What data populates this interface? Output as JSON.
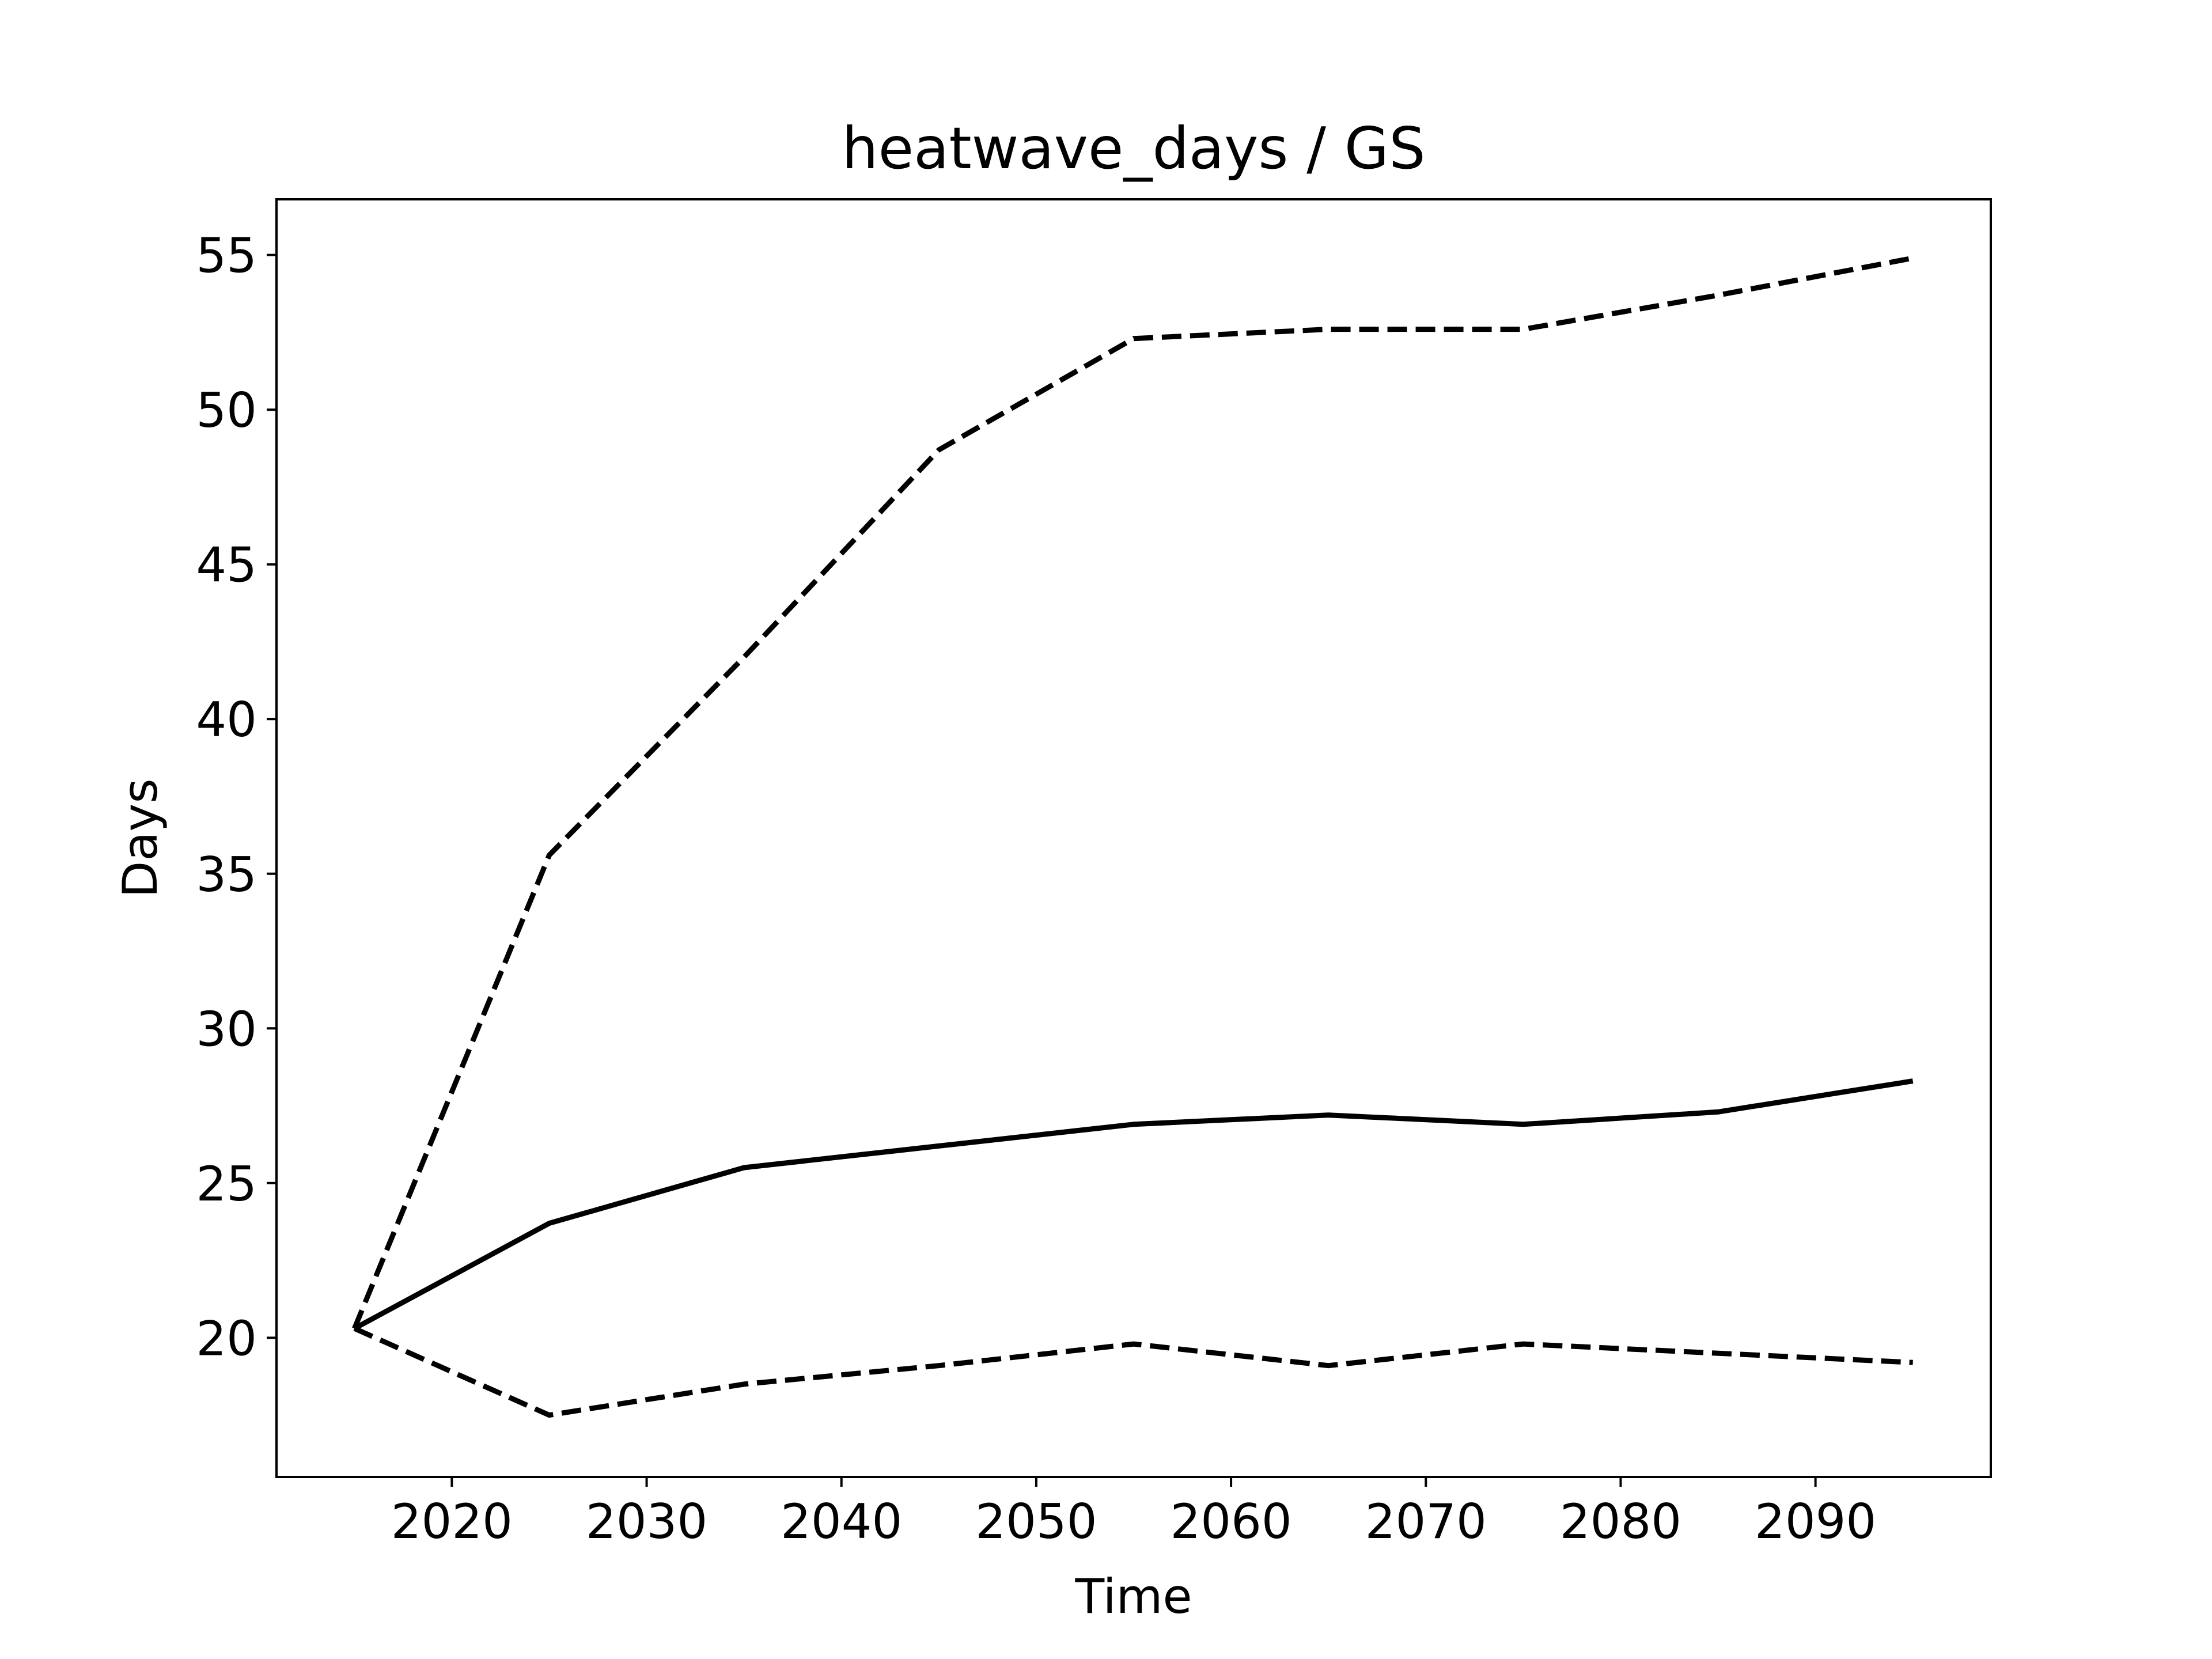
{
  "chart_data": {
    "type": "line",
    "title": "heatwave_days / GS",
    "xlabel": "Time",
    "ylabel": "Days",
    "x": [
      2015,
      2025,
      2035,
      2045,
      2055,
      2065,
      2075,
      2085,
      2095
    ],
    "xlim": [
      2011,
      2099
    ],
    "ylim": [
      15.5,
      56.8
    ],
    "xticks": [
      2020,
      2030,
      2040,
      2050,
      2060,
      2070,
      2080,
      2090
    ],
    "yticks": [
      20,
      25,
      30,
      35,
      40,
      45,
      50,
      55
    ],
    "grid": false,
    "legend": "none",
    "line_color": "#000000",
    "series": [
      {
        "style": "solid",
        "values": [
          20.3,
          23.7,
          25.5,
          26.2,
          26.9,
          27.2,
          26.9,
          27.3,
          28.3
        ]
      },
      {
        "style": "dashed",
        "values": [
          20.3,
          35.6,
          42.0,
          48.7,
          52.3,
          52.6,
          52.6,
          53.7,
          54.9
        ]
      },
      {
        "style": "dashed",
        "values": [
          20.3,
          17.5,
          18.5,
          19.1,
          19.8,
          19.1,
          19.8,
          19.5,
          19.2
        ]
      }
    ]
  }
}
